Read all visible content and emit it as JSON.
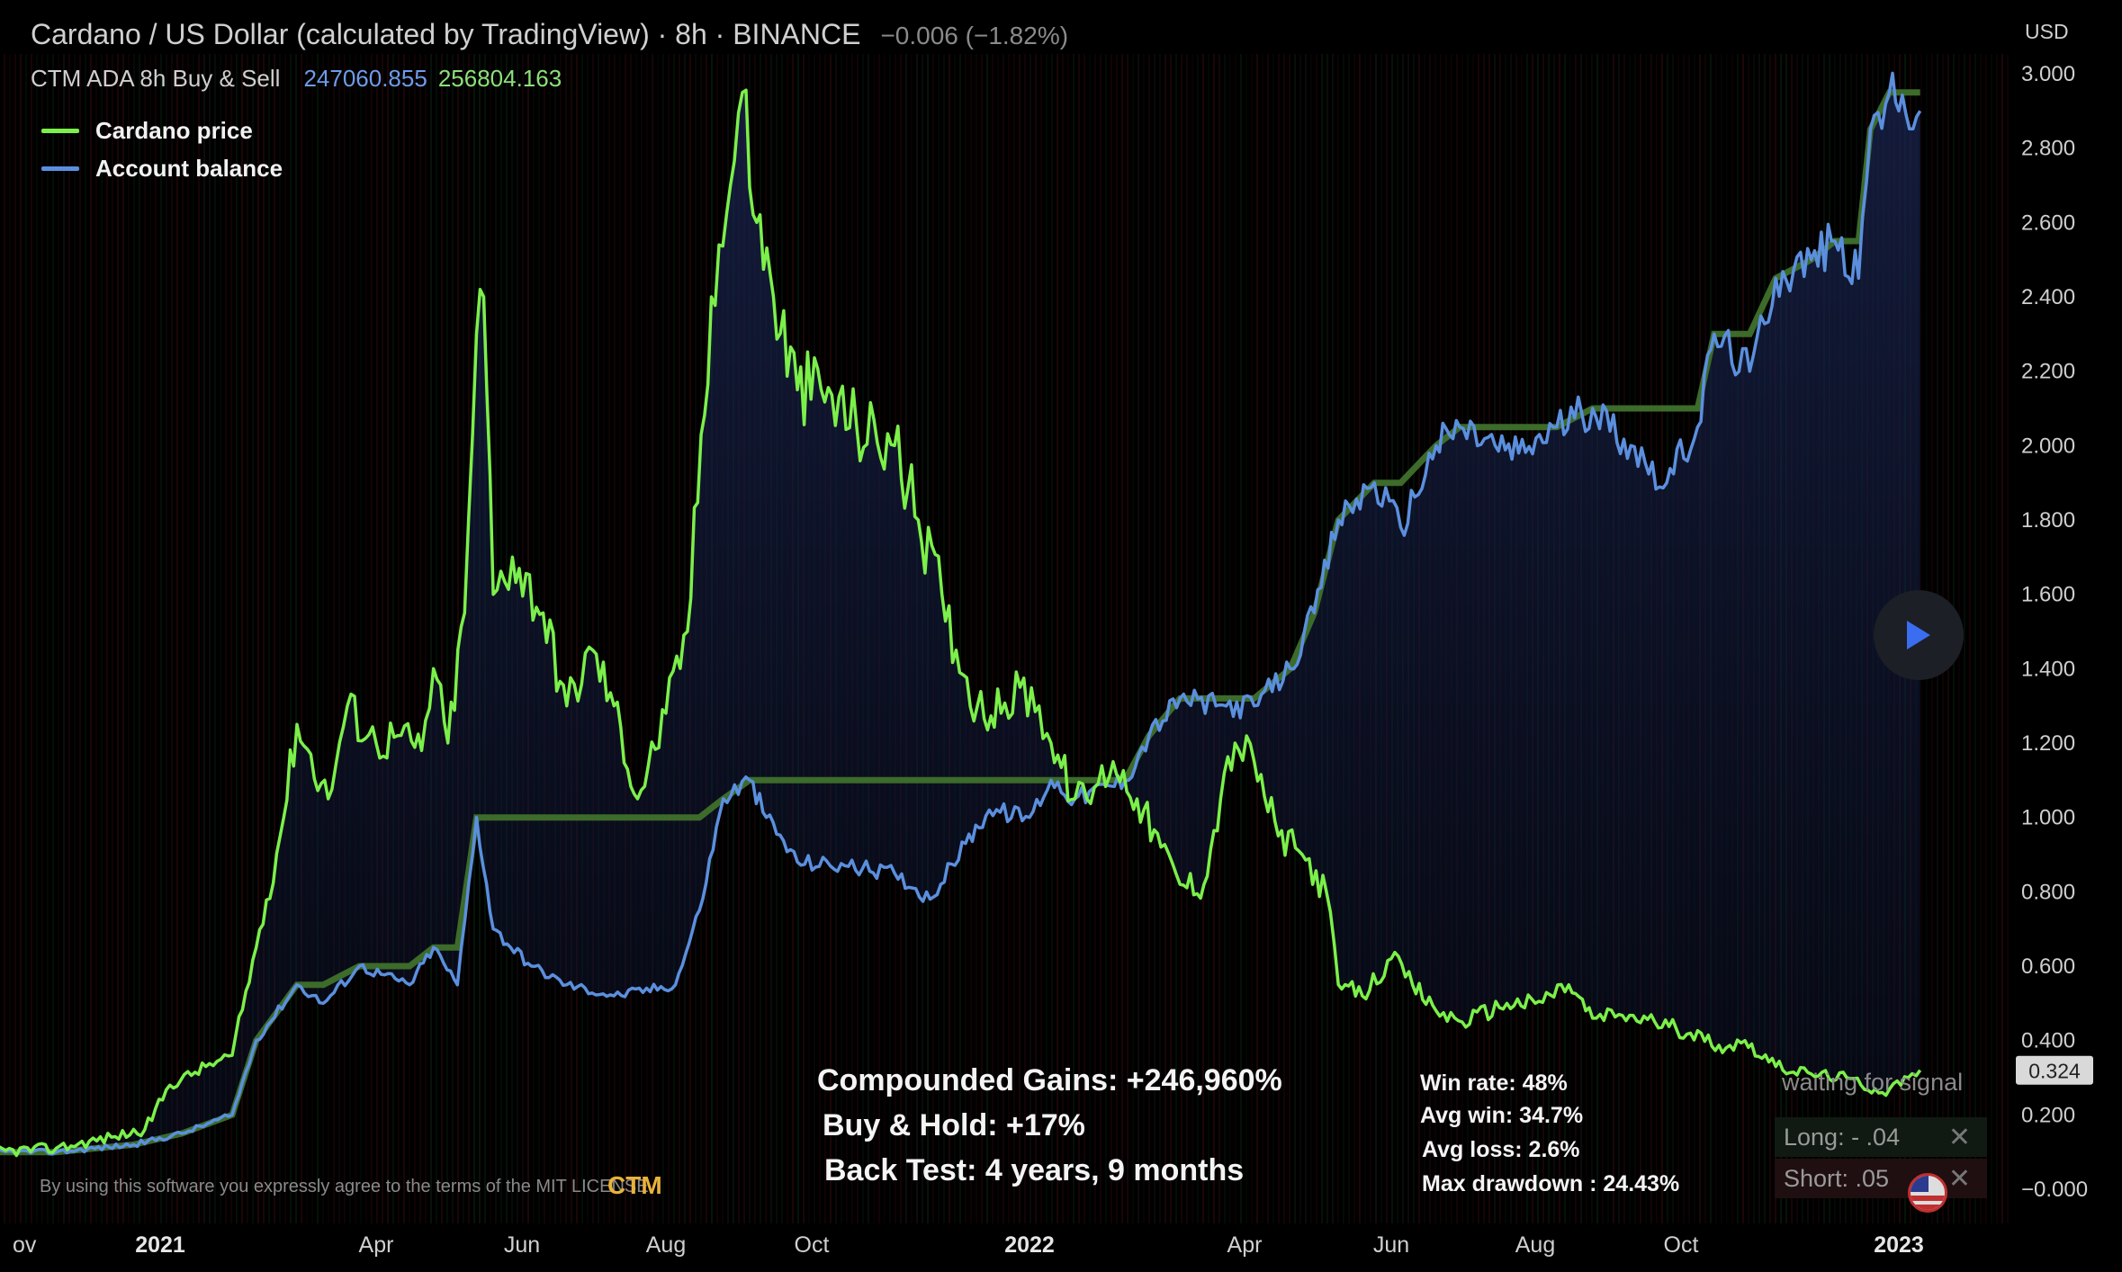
{
  "header": {
    "title": "Cardano / US Dollar (calculated by TradingView) · 8h · BINANCE",
    "change": "−0.006 (−1.82%)",
    "indicator_name": "CTM ADA 8h Buy & Sell",
    "indicator_value_1": "247060.855",
    "indicator_value_2": "256804.163"
  },
  "legend": {
    "items": [
      {
        "label": "Cardano price",
        "color": "#7cf04a"
      },
      {
        "label": "Account balance",
        "color": "#5b8fde"
      }
    ]
  },
  "axis": {
    "currency": "USD",
    "current_price_label": "0.324"
  },
  "stats": {
    "compounded": "Compounded Gains:  +246,960%",
    "buy_hold": "Buy & Hold:  +17%",
    "backtest": "Back Test:  4 years, 9 months",
    "win_rate": "Win rate:  48%",
    "avg_win": "Avg win:  34.7%",
    "avg_loss": "Avg loss:  2.6%",
    "max_drawdown": "Max drawdown :  24.43%"
  },
  "signals": {
    "waiting": "waiting for signal",
    "long": "Long: - .04",
    "short": "Short: .05"
  },
  "footer": {
    "disclaimer": "By using this software you expressly agree to the terms of the MIT LICENSE",
    "logo_text": "CTM"
  },
  "colors": {
    "price": "#7cf04a",
    "balance": "#5b8fde",
    "step": "#3c6b2a",
    "fill": "#0f1733"
  },
  "chart_data": {
    "type": "line",
    "xlabel": "",
    "ylabel": "",
    "ylim": [
      0,
      3.0
    ],
    "grid": false,
    "legend_position": "top-left",
    "x_ticks": [
      "ov",
      "2021",
      "Apr",
      "Jun",
      "Aug",
      "Oct",
      "2022",
      "Apr",
      "Jun",
      "Aug",
      "Oct",
      "2023"
    ],
    "x_tick_dates": [
      "2020-11-01",
      "2021-01-01",
      "2021-04-01",
      "2021-06-01",
      "2021-08-01",
      "2021-10-01",
      "2022-01-01",
      "2022-04-01",
      "2022-06-01",
      "2022-08-01",
      "2022-10-01",
      "2023-01-01"
    ],
    "y_ticks": [
      "−0.000",
      "0.200",
      "0.400",
      "0.600",
      "0.800",
      "1.000",
      "1.200",
      "1.400",
      "1.600",
      "1.800",
      "2.000",
      "2.200",
      "2.400",
      "2.600",
      "2.800",
      "3.000"
    ],
    "y_tick_values": [
      0,
      0.2,
      0.4,
      0.6,
      0.8,
      1.0,
      1.2,
      1.4,
      1.6,
      1.8,
      2.0,
      2.2,
      2.4,
      2.6,
      2.8,
      3.0
    ],
    "series": [
      {
        "name": "Cardano price",
        "points": [
          [
            "2020-10-15",
            0.1
          ],
          [
            "2020-11-15",
            0.11
          ],
          [
            "2020-12-10",
            0.14
          ],
          [
            "2020-12-25",
            0.16
          ],
          [
            "2021-01-05",
            0.28
          ],
          [
            "2021-01-20",
            0.33
          ],
          [
            "2021-01-31",
            0.36
          ],
          [
            "2021-02-10",
            0.65
          ],
          [
            "2021-02-20",
            0.95
          ],
          [
            "2021-02-27",
            1.25
          ],
          [
            "2021-03-12",
            1.05
          ],
          [
            "2021-03-20",
            1.3
          ],
          [
            "2021-04-01",
            1.2
          ],
          [
            "2021-04-10",
            1.22
          ],
          [
            "2021-04-20",
            1.18
          ],
          [
            "2021-04-25",
            1.4
          ],
          [
            "2021-05-01",
            1.2
          ],
          [
            "2021-05-08",
            1.55
          ],
          [
            "2021-05-13",
            2.3
          ],
          [
            "2021-05-16",
            2.4
          ],
          [
            "2021-05-20",
            1.6
          ],
          [
            "2021-05-28",
            1.7
          ],
          [
            "2021-06-10",
            1.55
          ],
          [
            "2021-06-20",
            1.3
          ],
          [
            "2021-07-01",
            1.45
          ],
          [
            "2021-07-10",
            1.3
          ],
          [
            "2021-07-20",
            1.05
          ],
          [
            "2021-08-01",
            1.28
          ],
          [
            "2021-08-10",
            1.5
          ],
          [
            "2021-08-20",
            2.4
          ],
          [
            "2021-08-28",
            2.7
          ],
          [
            "2021-09-02",
            2.95
          ],
          [
            "2021-09-08",
            2.6
          ],
          [
            "2021-09-15",
            2.4
          ],
          [
            "2021-09-25",
            2.15
          ],
          [
            "2021-10-05",
            2.15
          ],
          [
            "2021-10-20",
            2.05
          ],
          [
            "2021-11-05",
            2.0
          ],
          [
            "2021-11-15",
            1.8
          ],
          [
            "2021-11-25",
            1.6
          ],
          [
            "2021-12-01",
            1.45
          ],
          [
            "2021-12-10",
            1.3
          ],
          [
            "2021-12-20",
            1.28
          ],
          [
            "2021-12-28",
            1.35
          ],
          [
            "2022-01-05",
            1.3
          ],
          [
            "2022-01-10",
            1.2
          ],
          [
            "2022-01-20",
            1.05
          ],
          [
            "2022-01-25",
            1.05
          ],
          [
            "2022-02-05",
            1.15
          ],
          [
            "2022-02-15",
            1.05
          ],
          [
            "2022-02-25",
            0.92
          ],
          [
            "2022-03-05",
            0.82
          ],
          [
            "2022-03-15",
            0.82
          ],
          [
            "2022-03-22",
            1.05
          ],
          [
            "2022-03-28",
            1.2
          ],
          [
            "2022-04-05",
            1.15
          ],
          [
            "2022-04-15",
            0.95
          ],
          [
            "2022-04-25",
            0.9
          ],
          [
            "2022-05-05",
            0.8
          ],
          [
            "2022-05-10",
            0.55
          ],
          [
            "2022-05-20",
            0.52
          ],
          [
            "2022-06-01",
            0.62
          ],
          [
            "2022-06-10",
            0.55
          ],
          [
            "2022-06-20",
            0.48
          ],
          [
            "2022-07-01",
            0.45
          ],
          [
            "2022-07-20",
            0.5
          ],
          [
            "2022-08-01",
            0.5
          ],
          [
            "2022-08-15",
            0.55
          ],
          [
            "2022-08-25",
            0.46
          ],
          [
            "2022-09-05",
            0.47
          ],
          [
            "2022-09-20",
            0.45
          ],
          [
            "2022-10-05",
            0.42
          ],
          [
            "2022-10-20",
            0.38
          ],
          [
            "2022-10-28",
            0.4
          ],
          [
            "2022-11-10",
            0.33
          ],
          [
            "2022-11-25",
            0.31
          ],
          [
            "2022-12-10",
            0.3
          ],
          [
            "2022-12-25",
            0.26
          ],
          [
            "2023-01-05",
            0.3
          ],
          [
            "2023-01-10",
            0.32
          ]
        ]
      },
      {
        "name": "Account balance",
        "points": [
          [
            "2020-10-15",
            0.1
          ],
          [
            "2020-11-15",
            0.1
          ],
          [
            "2020-12-20",
            0.12
          ],
          [
            "2021-01-10",
            0.15
          ],
          [
            "2021-01-31",
            0.2
          ],
          [
            "2021-02-10",
            0.4
          ],
          [
            "2021-02-27",
            0.55
          ],
          [
            "2021-03-10",
            0.5
          ],
          [
            "2021-03-25",
            0.6
          ],
          [
            "2021-04-15",
            0.55
          ],
          [
            "2021-04-25",
            0.65
          ],
          [
            "2021-05-05",
            0.55
          ],
          [
            "2021-05-13",
            1.0
          ],
          [
            "2021-05-20",
            0.7
          ],
          [
            "2021-06-05",
            0.6
          ],
          [
            "2021-06-20",
            0.55
          ],
          [
            "2021-07-10",
            0.52
          ],
          [
            "2021-08-05",
            0.55
          ],
          [
            "2021-08-15",
            0.75
          ],
          [
            "2021-08-25",
            1.05
          ],
          [
            "2021-09-05",
            1.1
          ],
          [
            "2021-09-12",
            1.0
          ],
          [
            "2021-09-25",
            0.88
          ],
          [
            "2021-10-15",
            0.87
          ],
          [
            "2021-11-05",
            0.85
          ],
          [
            "2021-11-20",
            0.78
          ],
          [
            "2021-12-05",
            0.93
          ],
          [
            "2021-12-15",
            1.02
          ],
          [
            "2022-01-01",
            1.0
          ],
          [
            "2022-01-10",
            1.1
          ],
          [
            "2022-01-20",
            1.05
          ],
          [
            "2022-02-10",
            1.1
          ],
          [
            "2022-02-20",
            1.22
          ],
          [
            "2022-03-05",
            1.32
          ],
          [
            "2022-03-20",
            1.3
          ],
          [
            "2022-04-05",
            1.3
          ],
          [
            "2022-04-20",
            1.4
          ],
          [
            "2022-04-30",
            1.55
          ],
          [
            "2022-05-10",
            1.8
          ],
          [
            "2022-05-25",
            1.9
          ],
          [
            "2022-06-05",
            1.78
          ],
          [
            "2022-06-20",
            2.0
          ],
          [
            "2022-06-30",
            2.05
          ],
          [
            "2022-07-15",
            2.0
          ],
          [
            "2022-07-25",
            1.98
          ],
          [
            "2022-08-10",
            2.05
          ],
          [
            "2022-08-25",
            2.1
          ],
          [
            "2022-09-10",
            2.0
          ],
          [
            "2022-09-25",
            1.9
          ],
          [
            "2022-10-08",
            2.05
          ],
          [
            "2022-10-15",
            2.3
          ],
          [
            "2022-10-30",
            2.2
          ],
          [
            "2022-11-10",
            2.45
          ],
          [
            "2022-11-25",
            2.5
          ],
          [
            "2022-12-05",
            2.55
          ],
          [
            "2022-12-15",
            2.45
          ],
          [
            "2022-12-20",
            2.85
          ],
          [
            "2022-12-28",
            2.95
          ],
          [
            "2023-01-01",
            2.9
          ],
          [
            "2023-01-10",
            2.9
          ]
        ]
      }
    ]
  }
}
